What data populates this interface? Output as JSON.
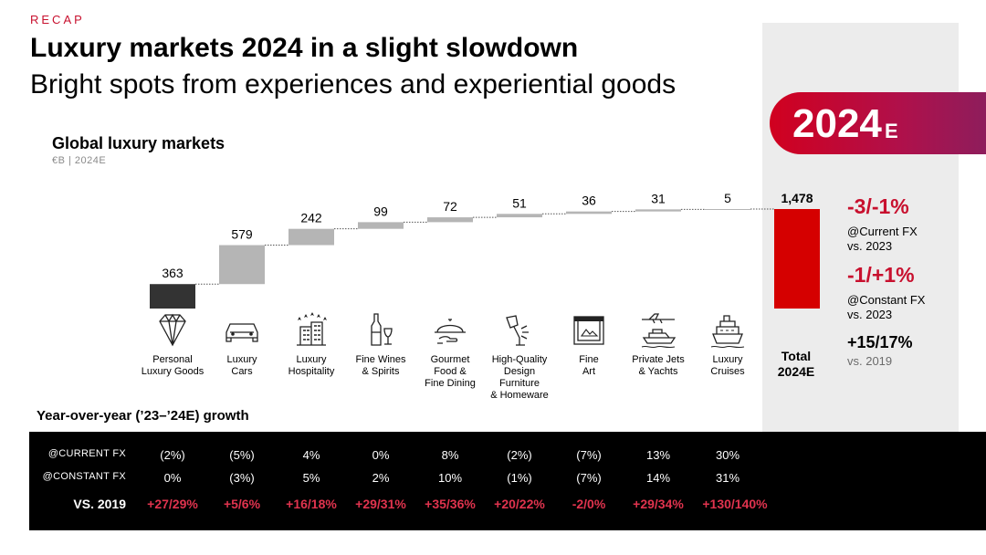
{
  "header": {
    "section": "RECAP",
    "title": "Luxury markets 2024 in a slight slowdown",
    "subtitle": "Bright spots from experiences and experiential goods"
  },
  "badge": {
    "year": "2024",
    "suffix": "E"
  },
  "chart_data": {
    "type": "waterfall",
    "title": "Global luxury markets",
    "unit": "€B | 2024E",
    "categories": [
      "Personal\nLuxury Goods",
      "Luxury\nCars",
      "Luxury\nHospitality",
      "Fine Wines\n& Spirits",
      "Gourmet\nFood &\nFine Dining",
      "High-Quality\nDesign\nFurniture\n& Homeware",
      "Fine\nArt",
      "Private Jets\n& Yachts",
      "Luxury\nCruises"
    ],
    "values": [
      363,
      579,
      242,
      99,
      72,
      51,
      36,
      31,
      5
    ],
    "value_labels": [
      "363",
      "579",
      "242",
      "99",
      "72",
      "51",
      "36",
      "31",
      "5"
    ],
    "icons": [
      "diamond-icon",
      "car-icon",
      "hotel-icon",
      "wine-icon",
      "cloche-icon",
      "lamp-icon",
      "picture-frame-icon",
      "jet-yacht-icon",
      "cruise-ship-icon"
    ],
    "total": {
      "label": "Total\n2024E",
      "value": 1478,
      "value_label": "1,478"
    },
    "colors": {
      "first": "#333333",
      "steps": "#b5b5b5",
      "total": "#d50000"
    }
  },
  "kpis": [
    {
      "value": "-3/-1%",
      "line1": "@Current FX",
      "line2": "vs. 2023"
    },
    {
      "value": "-1/+1%",
      "line1": "@Constant FX",
      "line2": "vs. 2023"
    },
    {
      "value": "+15/17%",
      "line1": "vs. 2019"
    }
  ],
  "growth": {
    "title": "Year-over-year (’23–’24E) growth",
    "rows": [
      {
        "label": "@CURRENT FX",
        "values": [
          "(2%)",
          "(5%)",
          "4%",
          "0%",
          "8%",
          "(2%)",
          "(7%)",
          "13%",
          "30%"
        ]
      },
      {
        "label": "@CONSTANT FX",
        "values": [
          "0%",
          "(3%)",
          "5%",
          "2%",
          "10%",
          "(1%)",
          "(7%)",
          "14%",
          "31%"
        ]
      },
      {
        "label": "VS. 2019",
        "values": [
          "+27/29%",
          "+5/6%",
          "+16/18%",
          "+29/31%",
          "+35/36%",
          "+20/22%",
          "-2/0%",
          "+29/34%",
          "+130/140%"
        ]
      }
    ]
  },
  "accent_color": "#c8102e"
}
